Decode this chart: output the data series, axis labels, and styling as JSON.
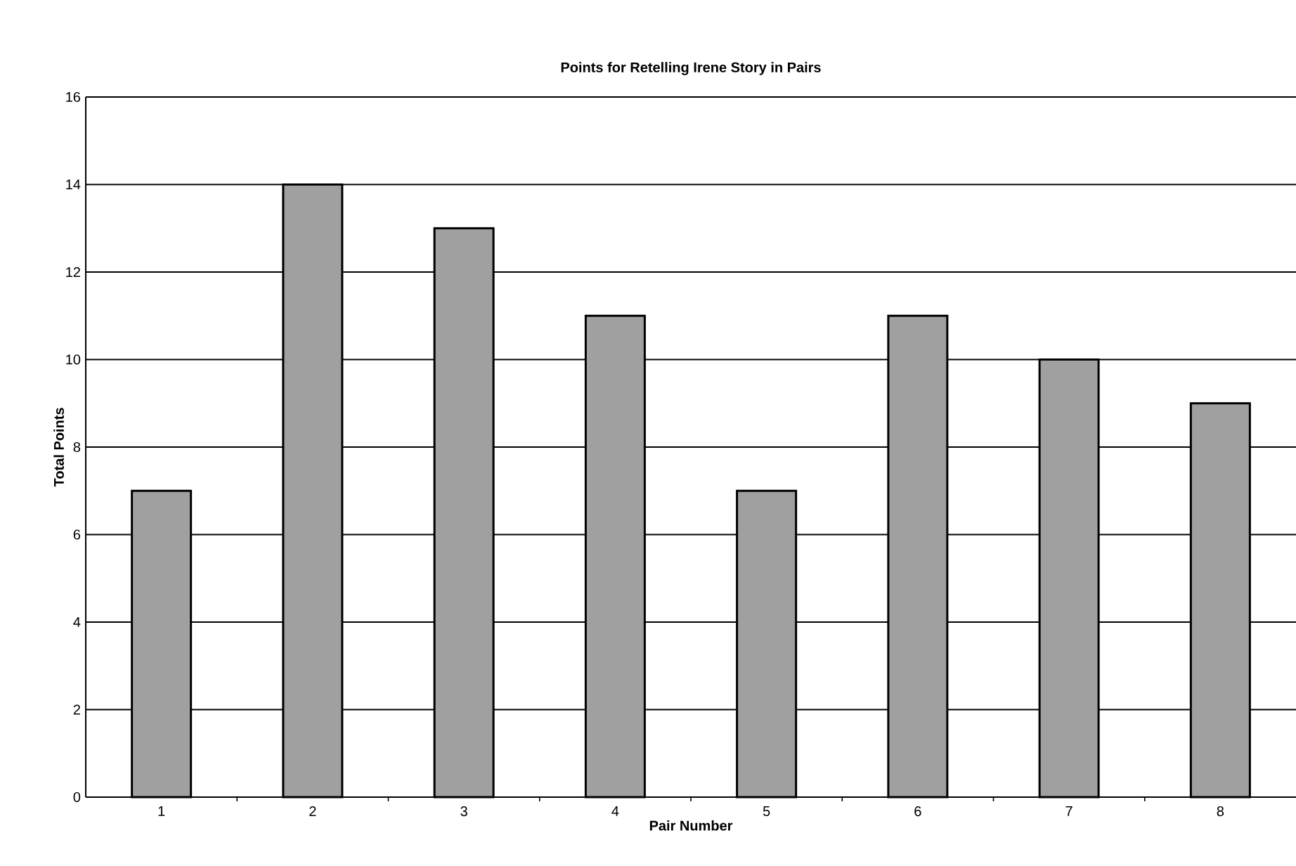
{
  "chart_data": {
    "type": "bar",
    "title": "Points for Retelling Irene Story in Pairs",
    "xlabel": "Pair Number",
    "ylabel": "Total Points",
    "categories": [
      "1",
      "2",
      "3",
      "4",
      "5",
      "6",
      "7",
      "8"
    ],
    "values": [
      7,
      14,
      13,
      11,
      7,
      11,
      10,
      9
    ],
    "color": "#a0a0a0",
    "ylim": [
      0,
      16
    ],
    "yticks": [
      0,
      2,
      4,
      6,
      8,
      10,
      12,
      14,
      16
    ],
    "grid": "y"
  }
}
